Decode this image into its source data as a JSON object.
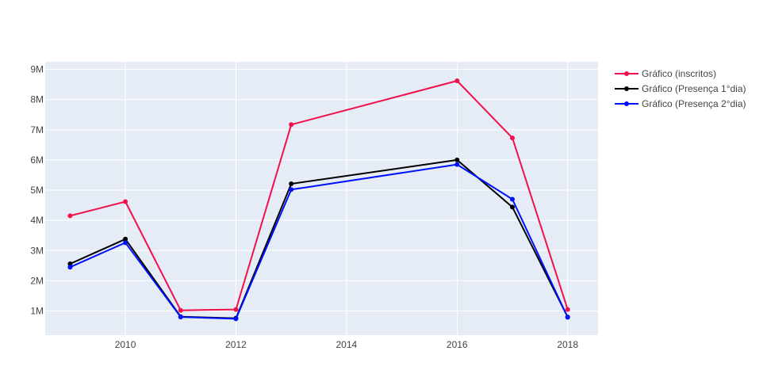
{
  "chart_data": {
    "type": "line",
    "title": "",
    "xlabel": "",
    "ylabel": "",
    "xlim": [
      2008.55,
      2018.55
    ],
    "ylim": [
      200000,
      9250000
    ],
    "x_ticks": [
      2010,
      2012,
      2014,
      2016,
      2018
    ],
    "x_tick_labels": [
      "2010",
      "2012",
      "2014",
      "2016",
      "2018"
    ],
    "y_ticks": [
      1000000,
      2000000,
      3000000,
      4000000,
      5000000,
      6000000,
      7000000,
      8000000,
      9000000
    ],
    "y_tick_labels": [
      "1M",
      "2M",
      "3M",
      "4M",
      "5M",
      "6M",
      "7M",
      "8M",
      "9M"
    ],
    "grid": true,
    "legend_position": "right",
    "plot_background": "#e5ecf6",
    "x": [
      2009,
      2010,
      2011,
      2012,
      2013,
      2016,
      2017,
      2018
    ],
    "series": [
      {
        "name": "Gráfico (inscritos)",
        "color": "#f0104b",
        "values": [
          4150000,
          4620000,
          1020000,
          1050000,
          7170000,
          8620000,
          6730000,
          1050000
        ]
      },
      {
        "name": "Gráfico (Presença 1°dia)",
        "color": "#000000",
        "values": [
          2560000,
          3380000,
          810000,
          760000,
          5210000,
          6000000,
          4440000,
          800000
        ]
      },
      {
        "name": "Gráfico (Presença 2°dia)",
        "color": "#0011ff",
        "values": [
          2450000,
          3260000,
          800000,
          740000,
          5020000,
          5850000,
          4700000,
          790000
        ]
      }
    ]
  }
}
